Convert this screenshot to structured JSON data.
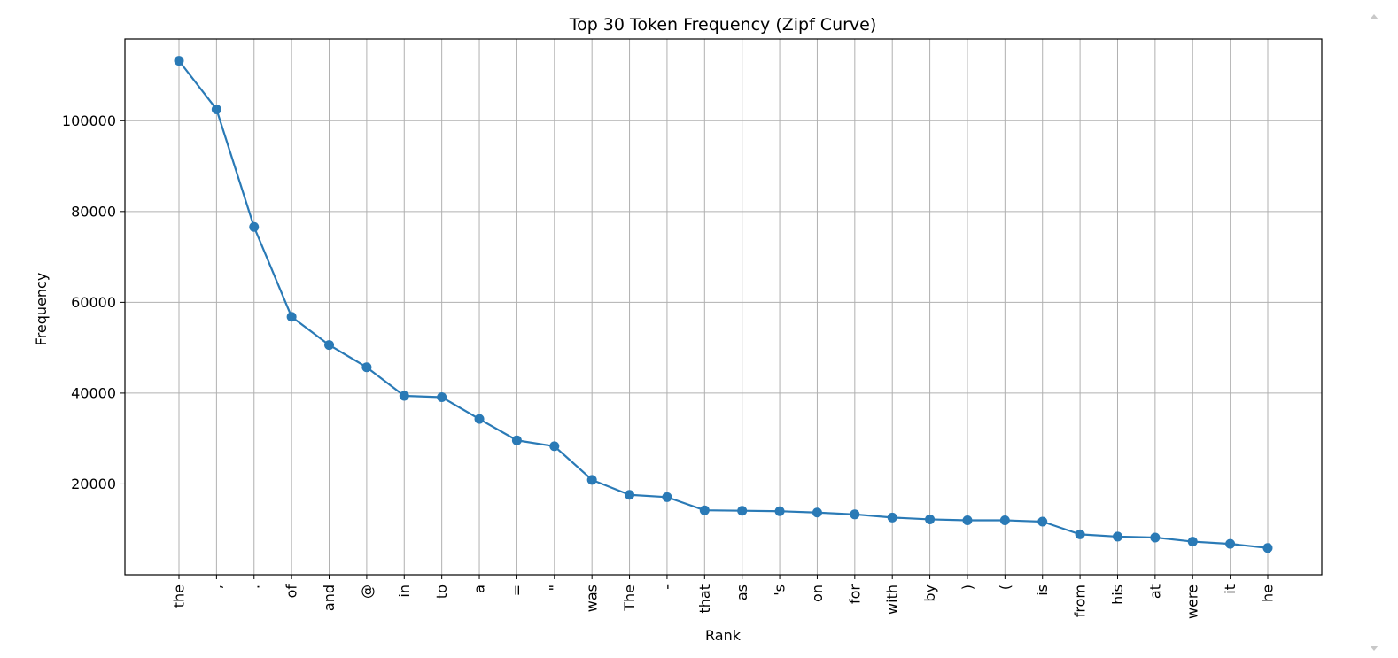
{
  "chart_data": {
    "type": "line",
    "title": "Top 30 Token Frequency (Zipf Curve)",
    "xlabel": "Rank",
    "ylabel": "Frequency",
    "categories": [
      "the",
      ",",
      ".",
      "of",
      "and",
      "@",
      "in",
      "to",
      "a",
      "=",
      "\"",
      "was",
      "The",
      "-",
      "that",
      "as",
      "'s",
      "on",
      "for",
      "with",
      "by",
      ")",
      "(",
      "is",
      "from",
      "his",
      "at",
      "were",
      "it",
      "he"
    ],
    "series": [
      {
        "values": [
          113200,
          102500,
          76600,
          56800,
          50600,
          45700,
          39400,
          39100,
          34300,
          29600,
          28300,
          20900,
          17600,
          17100,
          14200,
          14100,
          14000,
          13700,
          13300,
          12600,
          12200,
          12000,
          12000,
          11700,
          8900,
          8400,
          8200,
          7300,
          6800,
          5900
        ]
      }
    ],
    "ylim": [
      0,
      118000
    ],
    "yticks": [
      20000,
      40000,
      60000,
      80000,
      100000
    ],
    "grid": true,
    "line_color": "#2a7ab6"
  }
}
